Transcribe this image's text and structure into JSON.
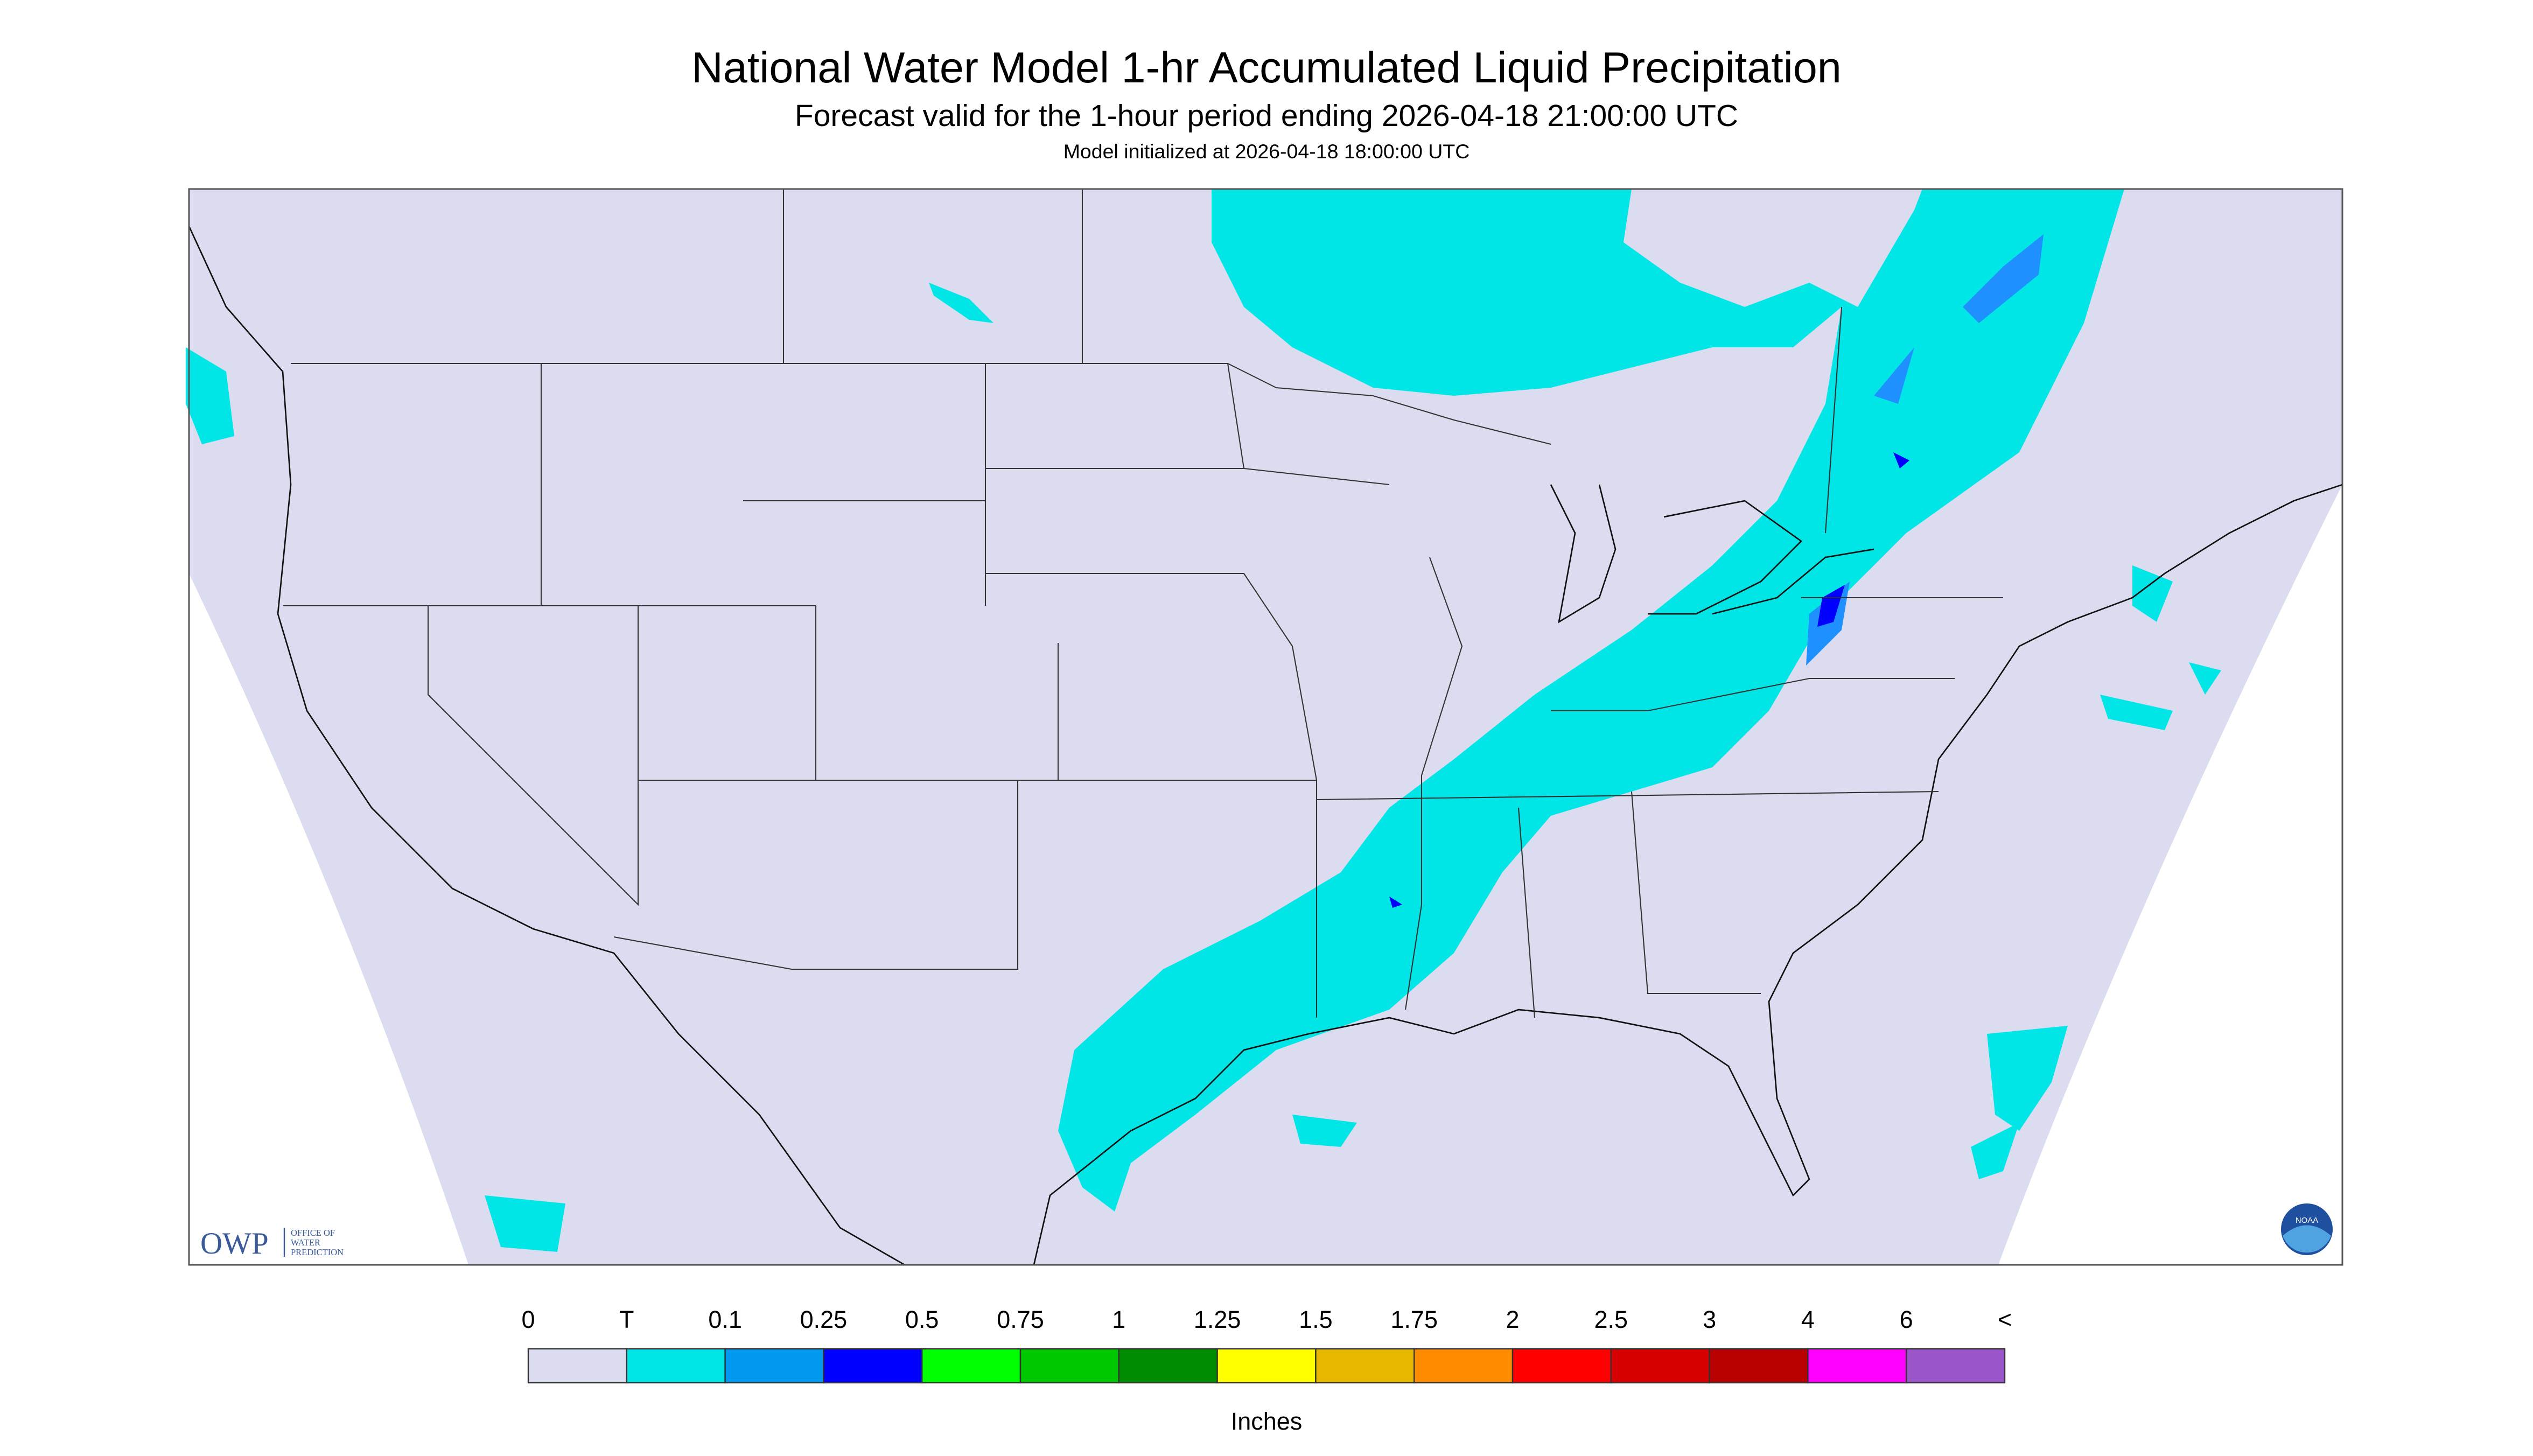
{
  "header": {
    "title": "National Water Model 1-hr Accumulated Liquid Precipitation",
    "subtitle": "Forecast valid for the 1-hour period ending 2026-04-18 21:00:00 UTC",
    "note": "Model initialized at 2026-04-18 18:00:00 UTC"
  },
  "legend": {
    "labels": [
      "0",
      "T",
      "0.1",
      "0.25",
      "0.5",
      "0.75",
      "1",
      "1.25",
      "1.5",
      "1.75",
      "2",
      "2.5",
      "3",
      "4",
      "6",
      "<"
    ],
    "colors": [
      "#dcdcf0",
      "#00e6e6",
      "#0099f0",
      "#0000ff",
      "#00ff00",
      "#00c800",
      "#008c00",
      "#ffff00",
      "#e6b800",
      "#ff8c00",
      "#ff0000",
      "#d60000",
      "#b80000",
      "#ff00ff",
      "#9955c9"
    ],
    "unit": "Inches"
  },
  "logos": {
    "owp": "OWP",
    "owp_lines": [
      "OFFICE OF",
      "WATER",
      "PREDICTION"
    ],
    "noaa": "NOAA"
  }
}
